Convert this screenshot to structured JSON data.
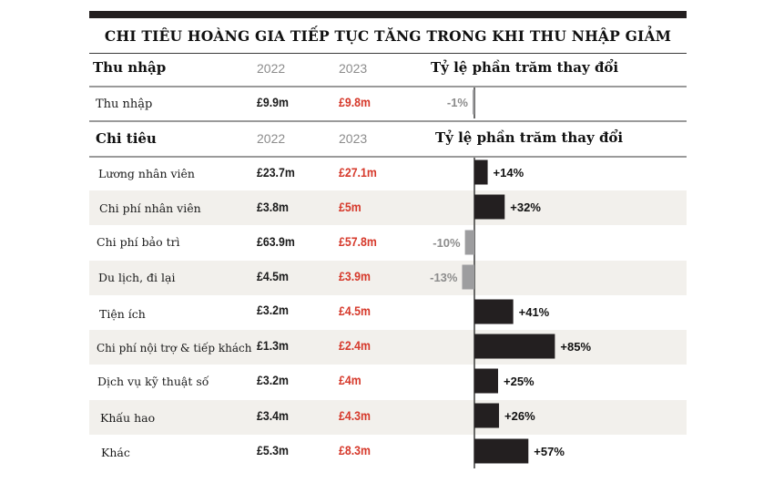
{
  "title": "CHI TIÊU HOÀNG GIA TIẾP TỤC TĂNG TRONG KHI THU NHẬP GIẢM",
  "colors": {
    "increase": "#231f20",
    "decrease": "#9d9d9f",
    "value_2023": "#d6392b",
    "band": "#f2f0ec"
  },
  "income_section": {
    "header": "Thu nhập",
    "year1": "2022",
    "year2": "2023",
    "pct_header": "Tỷ lệ phần trăm thay đổi",
    "rows": [
      {
        "label": "Thu nhập",
        "v2022": "£9.9m",
        "v2023": "£9.8m"
      }
    ]
  },
  "expense_section": {
    "header": "Chi tiêu",
    "year1": "2022",
    "year2": "2023",
    "pct_header": "Tỷ lệ phần trăm thay đổi",
    "rows": [
      {
        "label": "Lương nhân viên",
        "v2022": "£23.7m",
        "v2023": "£27.1m"
      },
      {
        "label": "Chi phí nhân viên",
        "v2022": "£3.8m",
        "v2023": "£5m"
      },
      {
        "label": "Chi phí bảo trì",
        "v2022": "£63.9m",
        "v2023": "£57.8m"
      },
      {
        "label": "Du lịch, đi lại",
        "v2022": "£4.5m",
        "v2023": "£3.9m"
      },
      {
        "label": "Tiện ích",
        "v2022": "£3.2m",
        "v2023": "£4.5m"
      },
      {
        "label": "Chi phí nội trợ & tiếp khách",
        "v2022": "£1.3m",
        "v2023": "£2.4m"
      },
      {
        "label": "Dịch vụ kỹ thuật số",
        "v2022": "£3.2m",
        "v2023": "£4m"
      },
      {
        "label": "Khấu hao",
        "v2022": "£3.4m",
        "v2023": "£4.3m"
      },
      {
        "label": "Khác",
        "v2022": "£5.3m",
        "v2023": "£8.3m"
      }
    ]
  },
  "chart_data": {
    "type": "bar",
    "orientation": "horizontal",
    "title": "CHI TIÊU HOÀNG GIA TIẾP TỤC TĂNG TRONG KHI THU NHẬP GIẢM",
    "xlabel": "Tỷ lệ phần trăm thay đổi",
    "categories": [
      "Thu nhập",
      "Lương nhân viên",
      "Chi phí nhân viên",
      "Chi phí bảo trì",
      "Du lịch, đi lại",
      "Tiện ích",
      "Chi phí nội trợ & tiếp khách",
      "Dịch vụ kỹ thuật số",
      "Khấu hao",
      "Khác"
    ],
    "values": [
      -1,
      14,
      32,
      -10,
      -13,
      41,
      85,
      25,
      26,
      57
    ],
    "labels": [
      "-1%",
      "+14%",
      "+32%",
      "-10%",
      "-13%",
      "+41%",
      "+85%",
      "+25%",
      "+26%",
      "+57%"
    ]
  }
}
